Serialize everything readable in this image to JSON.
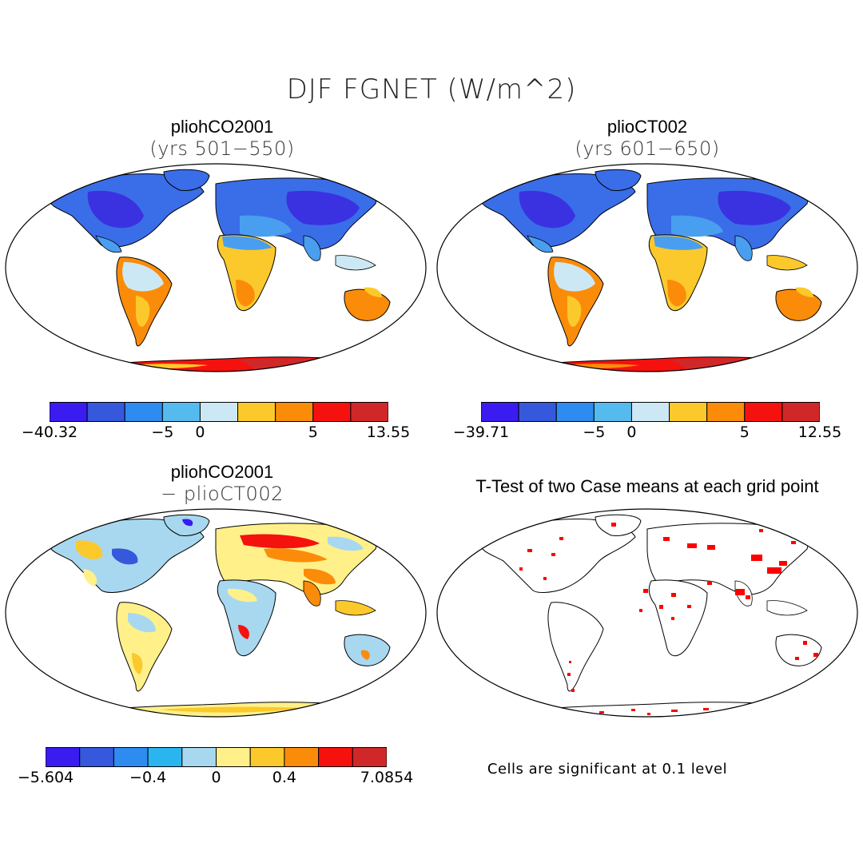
{
  "title": "DJF FGNET (W/m^2)",
  "panels": {
    "a": {
      "title": "pliohCO2001",
      "subtitle": "(yrs 501−550)"
    },
    "b": {
      "title": "plioCT002",
      "subtitle": "(yrs 601−650)"
    },
    "c": {
      "title": "pliohCO2001",
      "subtitle": "− plioCT002"
    },
    "d": {
      "title": "T-Test of two Case means at each grid point",
      "footnote": "Cells are significant at 0.1 level"
    }
  },
  "colorbars": {
    "a": {
      "colors": [
        "#3a1cf0",
        "#3658dc",
        "#2e8cf0",
        "#55bbee",
        "#cde8f5",
        "#fbc92b",
        "#fb8c0a",
        "#f5120e",
        "#d02828"
      ],
      "labels": [
        "−40.32",
        "−5",
        "0",
        "5",
        "13.55"
      ]
    },
    "b": {
      "colors": [
        "#3a1cf0",
        "#3658dc",
        "#2e8cf0",
        "#55bbee",
        "#cde8f5",
        "#fbc92b",
        "#fb8c0a",
        "#f5120e",
        "#d02828"
      ],
      "labels": [
        "−39.71",
        "−5",
        "0",
        "5",
        "12.55"
      ]
    },
    "c": {
      "colors": [
        "#3a1cf0",
        "#3658dc",
        "#2e8cf0",
        "#2ab4f0",
        "#a8d8f0",
        "#fff08a",
        "#fbc92b",
        "#fb8c0a",
        "#f5120e",
        "#d02828"
      ],
      "labels": [
        "−5.604",
        "−0.4",
        "0",
        "0.4",
        "7.0854"
      ]
    }
  },
  "map_colors": {
    "land_cold": "#3a6ee8",
    "land_verycold": "#3a32e0",
    "land_midcold": "#4a9ef0",
    "land_pale": "#cde8f5",
    "land_warm": "#fbc92b",
    "land_hot": "#fb8c0a",
    "land_veryhot": "#f5120e",
    "significant": "#ff0000"
  }
}
